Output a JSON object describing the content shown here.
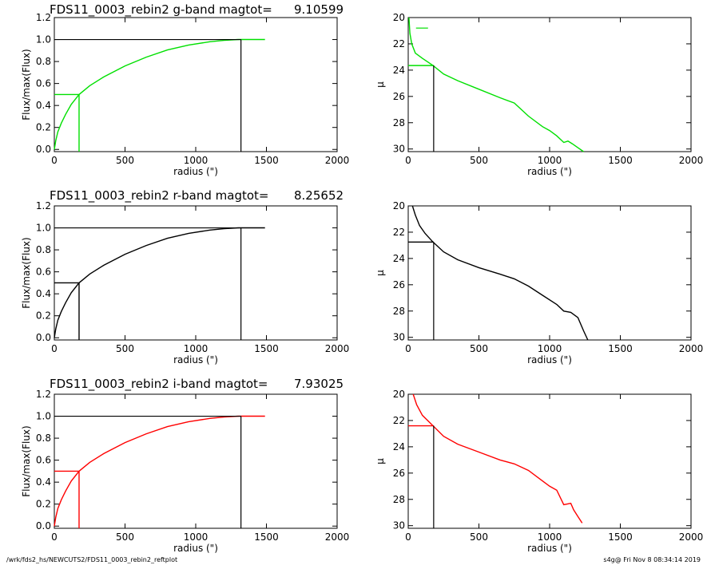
{
  "footer": {
    "path": "/wrk/fds2_hs/NEWCUTS2/FDS11_0003_rebin2_reftplot",
    "stamp": "s4g@  Fri Nov  8 08:34:14 2019"
  },
  "chart_data": [
    {
      "type": "line",
      "panel": "growth-g",
      "title": "FDS11_0003_rebin2 g-band  magtot=",
      "title_value": "9.10599",
      "xlabel": "radius (\")",
      "ylabel": "Flux/max(Flux)",
      "xlim": [
        0,
        2000
      ],
      "ylim": [
        -0.02,
        1.2
      ],
      "xticks": [
        0,
        500,
        1000,
        1500,
        2000
      ],
      "yticks": [
        0.0,
        0.2,
        0.4,
        0.6,
        0.8,
        1.0,
        1.2
      ],
      "color": "#00e000",
      "series": [
        {
          "x": [
            0,
            10,
            25,
            50,
            80,
            120,
            175,
            250,
            350,
            500,
            650,
            800,
            950,
            1100,
            1200,
            1300,
            1400,
            1490
          ],
          "y": [
            0.0,
            0.08,
            0.16,
            0.24,
            0.32,
            0.41,
            0.5,
            0.58,
            0.66,
            0.76,
            0.84,
            0.905,
            0.95,
            0.98,
            0.992,
            1.0,
            1.0,
            1.0
          ]
        }
      ],
      "half_light": {
        "x": 175,
        "y": 0.5
      },
      "total": {
        "x": 1320,
        "y": 1.0
      }
    },
    {
      "type": "line",
      "panel": "profile-g",
      "xlabel": "radius (\")",
      "ylabel": "μ",
      "xlim": [
        0,
        2000
      ],
      "ylim": [
        30.2,
        20
      ],
      "xticks": [
        0,
        500,
        1000,
        1500,
        2000
      ],
      "yticks": [
        20,
        22,
        24,
        26,
        28,
        30
      ],
      "color": "#00e000",
      "series": [
        {
          "x": [
            5,
            12,
            25,
            50,
            100,
            175,
            250,
            350,
            500,
            650,
            750,
            850,
            950,
            1000,
            1050,
            1100,
            1130,
            1160,
            1200,
            1240
          ],
          "y": [
            20.0,
            21.2,
            22.0,
            22.7,
            23.1,
            23.65,
            24.3,
            24.8,
            25.45,
            26.1,
            26.5,
            27.5,
            28.3,
            28.6,
            29.0,
            29.5,
            29.4,
            29.6,
            29.9,
            30.2
          ]
        }
      ],
      "short_segment": {
        "x": [
          55,
          140
        ],
        "y": 20.8
      },
      "half_light": {
        "x": 180,
        "y": 23.65
      }
    },
    {
      "type": "line",
      "panel": "growth-r",
      "title": "FDS11_0003_rebin2 r-band  magtot=",
      "title_value": "8.25652",
      "xlabel": "radius (\")",
      "ylabel": "Flux/max(Flux)",
      "xlim": [
        0,
        2000
      ],
      "ylim": [
        -0.02,
        1.2
      ],
      "xticks": [
        0,
        500,
        1000,
        1500,
        2000
      ],
      "yticks": [
        0.0,
        0.2,
        0.4,
        0.6,
        0.8,
        1.0,
        1.2
      ],
      "color": "#000000",
      "series": [
        {
          "x": [
            0,
            10,
            25,
            50,
            80,
            120,
            175,
            250,
            350,
            500,
            650,
            800,
            950,
            1100,
            1200,
            1300,
            1400,
            1490
          ],
          "y": [
            0.0,
            0.08,
            0.16,
            0.24,
            0.32,
            0.41,
            0.5,
            0.58,
            0.66,
            0.76,
            0.84,
            0.905,
            0.95,
            0.98,
            0.992,
            1.0,
            1.0,
            1.0
          ]
        }
      ],
      "half_light": {
        "x": 175,
        "y": 0.5
      },
      "total": {
        "x": 1320,
        "y": 1.0
      }
    },
    {
      "type": "line",
      "panel": "profile-r",
      "xlabel": "radius (\")",
      "ylabel": "μ",
      "xlim": [
        0,
        2000
      ],
      "ylim": [
        30.2,
        20
      ],
      "xticks": [
        0,
        500,
        1000,
        1500,
        2000
      ],
      "yticks": [
        20,
        22,
        24,
        26,
        28,
        30
      ],
      "color": "#000000",
      "series": [
        {
          "x": [
            30,
            50,
            80,
            120,
            175,
            250,
            350,
            500,
            650,
            750,
            850,
            950,
            1050,
            1100,
            1150,
            1200,
            1240,
            1270
          ],
          "y": [
            20.0,
            20.7,
            21.5,
            22.1,
            22.75,
            23.5,
            24.1,
            24.7,
            25.2,
            25.55,
            26.1,
            26.8,
            27.5,
            28.0,
            28.1,
            28.5,
            29.5,
            30.2
          ]
        }
      ],
      "half_light": {
        "x": 180,
        "y": 22.75
      }
    },
    {
      "type": "line",
      "panel": "growth-i",
      "title": "FDS11_0003_rebin2 i-band  magtot=",
      "title_value": "7.93025",
      "xlabel": "radius (\")",
      "ylabel": "Flux/max(Flux)",
      "xlim": [
        0,
        2000
      ],
      "ylim": [
        -0.02,
        1.2
      ],
      "xticks": [
        0,
        500,
        1000,
        1500,
        2000
      ],
      "yticks": [
        0.0,
        0.2,
        0.4,
        0.6,
        0.8,
        1.0,
        1.2
      ],
      "color": "#ff0000",
      "series": [
        {
          "x": [
            0,
            10,
            25,
            50,
            80,
            120,
            175,
            250,
            350,
            500,
            650,
            800,
            950,
            1100,
            1200,
            1300,
            1400,
            1490
          ],
          "y": [
            0.0,
            0.08,
            0.16,
            0.24,
            0.32,
            0.41,
            0.5,
            0.58,
            0.66,
            0.76,
            0.84,
            0.905,
            0.95,
            0.98,
            0.992,
            1.0,
            1.0,
            1.0
          ]
        }
      ],
      "half_light": {
        "x": 175,
        "y": 0.5
      },
      "total": {
        "x": 1320,
        "y": 1.0
      }
    },
    {
      "type": "line",
      "panel": "profile-i",
      "xlabel": "radius (\")",
      "ylabel": "μ",
      "xlim": [
        0,
        2000
      ],
      "ylim": [
        30.2,
        20
      ],
      "xticks": [
        0,
        500,
        1000,
        1500,
        2000
      ],
      "yticks": [
        20,
        22,
        24,
        26,
        28,
        30
      ],
      "color": "#ff0000",
      "series": [
        {
          "x": [
            35,
            60,
            100,
            175,
            250,
            350,
            500,
            650,
            750,
            850,
            950,
            1000,
            1050,
            1100,
            1150,
            1170,
            1200,
            1230
          ],
          "y": [
            20.0,
            20.8,
            21.6,
            22.4,
            23.2,
            23.8,
            24.4,
            25.0,
            25.3,
            25.8,
            26.6,
            27.0,
            27.3,
            28.4,
            28.3,
            28.8,
            29.3,
            29.8
          ]
        }
      ],
      "half_light": {
        "x": 180,
        "y": 22.4
      }
    }
  ]
}
